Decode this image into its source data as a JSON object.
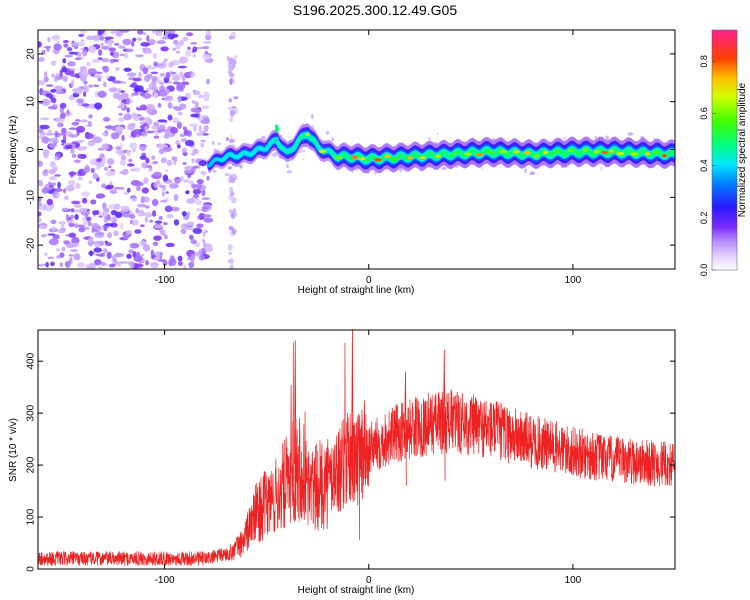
{
  "title": "S196.2025.300.12.49.G05",
  "chart_data": [
    {
      "type": "heatmap",
      "name": "spectrogram",
      "xlabel": "Height of straight line (km)",
      "ylabel": "Frequency (Hz)",
      "xlim": [
        -162,
        150
      ],
      "ylim": [
        -25,
        25
      ],
      "xticks": [
        -100,
        0,
        100
      ],
      "xtick_labels": [
        "-100",
        "0",
        "100"
      ],
      "yticks": [
        -20,
        -10,
        0,
        10,
        20
      ],
      "ytick_labels": [
        "-20",
        "-10",
        "0",
        "10",
        "20"
      ],
      "colorbar": {
        "label": "Normalized spectral amplitude",
        "range": [
          0,
          0.92
        ],
        "ticks": [
          0,
          0.2,
          0.4,
          0.6,
          0.8
        ],
        "tick_labels": [
          "0.0",
          "0.2",
          "0.4",
          "0.6",
          "0.8"
        ]
      },
      "noise_region_x": [
        -162,
        -78
      ],
      "signal_track": {
        "x": [
          -78,
          -70,
          -60,
          -50,
          -45,
          -40,
          -35,
          -30,
          -25,
          -20,
          -15,
          -10,
          0,
          20,
          40,
          60,
          80,
          100,
          120,
          150
        ],
        "freq": [
          -3,
          -1.5,
          -1,
          0.5,
          2,
          -1,
          1.5,
          3.5,
          0.5,
          -0.5,
          -1.5,
          -1.5,
          -2,
          -1.5,
          -1,
          -0.5,
          -1,
          -0.5,
          -0.5,
          -1
        ],
        "amplitude": [
          0.3,
          0.45,
          0.5,
          0.5,
          0.6,
          0.55,
          0.6,
          0.7,
          0.6,
          0.55,
          0.7,
          0.75,
          0.8,
          0.8,
          0.8,
          0.85,
          0.8,
          0.85,
          0.85,
          0.8
        ]
      }
    },
    {
      "type": "line",
      "name": "snr",
      "xlabel": "Height of straight line (km)",
      "ylabel": "SNR (10 * v/v)",
      "xlim": [
        -162,
        150
      ],
      "ylim": [
        0,
        460
      ],
      "xticks": [
        -100,
        0,
        100
      ],
      "xtick_labels": [
        "-100",
        "0",
        "100"
      ],
      "yticks": [
        0,
        100,
        200,
        300,
        400
      ],
      "ytick_labels": [
        "0",
        "100",
        "200",
        "300",
        "400"
      ],
      "color": "#ee2222",
      "envelope": {
        "x": [
          -162,
          -120,
          -80,
          -68,
          -62,
          -55,
          -45,
          -40,
          -35,
          -28,
          -20,
          -10,
          0,
          10,
          20,
          30,
          40,
          60,
          80,
          100,
          120,
          150
        ],
        "mean": [
          20,
          20,
          20,
          30,
          50,
          110,
          140,
          170,
          210,
          150,
          170,
          210,
          230,
          255,
          270,
          280,
          285,
          270,
          245,
          225,
          210,
          200
        ]
      },
      "peaks": [
        {
          "x": -36,
          "y": 440
        },
        {
          "x": -8,
          "y": 460
        },
        {
          "x": 37,
          "y": 422
        },
        {
          "x": 18,
          "y": 380
        }
      ]
    }
  ]
}
